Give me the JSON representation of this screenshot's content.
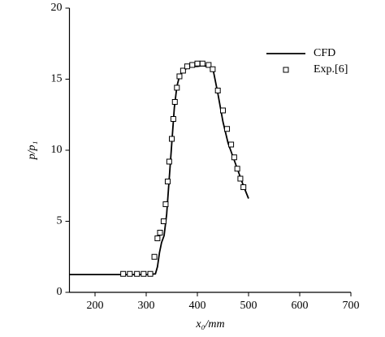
{
  "chart_data": {
    "type": "line",
    "xlabel": "x₀/mm",
    "ylabel": "p/p₁",
    "xlim": [
      150,
      700
    ],
    "xticks": [
      200,
      300,
      400,
      500,
      600,
      700
    ],
    "ylim": [
      0,
      20
    ],
    "yticks": [
      0,
      5,
      10,
      15,
      20
    ],
    "legend": "upper right",
    "series": [
      {
        "name": "CFD",
        "type": "line",
        "color": "#000000",
        "x": [
          150,
          300,
          318,
          322,
          326,
          330,
          335,
          340,
          345,
          350,
          355,
          360,
          365,
          370,
          380,
          390,
          400,
          410,
          420,
          430,
          440,
          450,
          460,
          470,
          480,
          490,
          500
        ],
        "values": [
          1.25,
          1.25,
          1.3,
          1.8,
          2.8,
          3.5,
          4.0,
          5.5,
          8.0,
          10.5,
          13,
          14.5,
          15.2,
          15.5,
          15.8,
          15.9,
          15.9,
          15.95,
          15.9,
          15.8,
          14.0,
          12.0,
          10.5,
          9.5,
          8.5,
          7.5,
          6.6
        ]
      },
      {
        "name": "Exp.[6]",
        "type": "scatter",
        "color": "#000000",
        "x": [
          255,
          268,
          282,
          295,
          308,
          316,
          322,
          327,
          334,
          338,
          342,
          345,
          350,
          353,
          356,
          360,
          365,
          372,
          380,
          390,
          400,
          410,
          422,
          430,
          440,
          450,
          458,
          466,
          472,
          478,
          484,
          490
        ],
        "values": [
          1.3,
          1.3,
          1.3,
          1.3,
          1.3,
          2.5,
          3.8,
          4.2,
          5.0,
          6.2,
          7.8,
          9.2,
          10.8,
          12.2,
          13.4,
          14.4,
          15.2,
          15.6,
          15.9,
          16.0,
          16.1,
          16.1,
          16.0,
          15.7,
          14.2,
          12.8,
          11.5,
          10.4,
          9.5,
          8.7,
          8.0,
          7.4
        ]
      }
    ]
  }
}
